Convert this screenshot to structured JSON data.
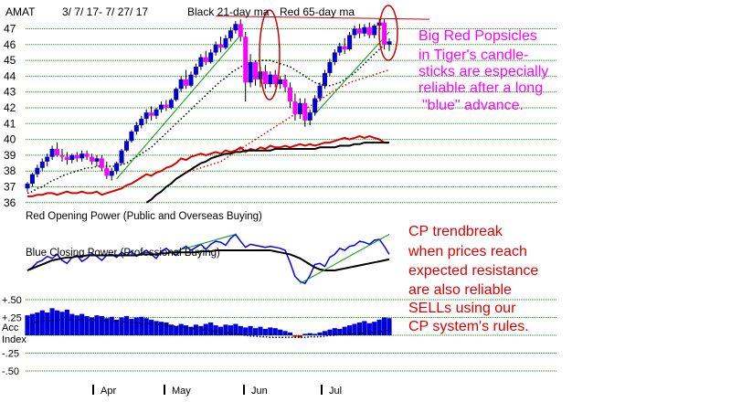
{
  "header": {
    "ticker": "AMAT",
    "date_range": "3/ 7/ 17- 7/ 27/ 17",
    "ma_label_black": "Black 21-day ma",
    "ma_label_red": "Red 65-day ma"
  },
  "annotations": {
    "popsicles": [
      "Big Red Popsicles",
      "in Tiger's candle-",
      "sticks are especially",
      "reliable after a long",
      "\"blue\" advance."
    ],
    "cp_trendbreak": [
      "CP trendbreak",
      "when prices reach",
      "expected resistance",
      "are also reliable",
      "SELLs using our",
      "CP system's rules."
    ]
  },
  "panel_labels": {
    "opening_power": "Red Opening Power (Public and Overseas Buying)",
    "closing_power": "Blue Closing Power (Professional Buying)",
    "acc_index": [
      "Acc",
      "Index"
    ]
  },
  "colors": {
    "up_candle": "#0000cc",
    "down_candle": "#ff00ff",
    "opening_power": "#dd0000",
    "closing_power": "#0000ff",
    "grid": "#009900",
    "trendline": "#009900",
    "acc_bars": "#0000dd",
    "ellipse": "#cc0000",
    "annotation_magenta": "#ff00ff",
    "annotation_red": "#dd0000"
  },
  "chart_data": [
    {
      "type": "candlestick",
      "title": "AMAT",
      "y_ticks": [
        36,
        37,
        38,
        39,
        40,
        41,
        42,
        43,
        44,
        45,
        46,
        47
      ],
      "ylim": [
        35.5,
        47.8
      ],
      "x_month_labels": [
        "Apr",
        "May",
        "Jun",
        "Jul"
      ],
      "grid": true,
      "candles": [
        [
          36.9,
          37.3,
          36.7,
          37.2
        ],
        [
          37.2,
          37.9,
          37.0,
          37.8
        ],
        [
          37.8,
          38.4,
          37.6,
          38.2
        ],
        [
          38.2,
          38.8,
          38.0,
          38.6
        ],
        [
          38.6,
          39.1,
          38.3,
          38.9
        ],
        [
          38.9,
          39.6,
          38.7,
          39.4
        ],
        [
          39.4,
          39.8,
          38.9,
          39.0
        ],
        [
          39.0,
          39.4,
          38.6,
          38.9
        ],
        [
          38.9,
          39.2,
          38.4,
          38.7
        ],
        [
          38.7,
          39.1,
          38.5,
          39.0
        ],
        [
          39.0,
          39.2,
          38.6,
          38.8
        ],
        [
          38.8,
          39.3,
          38.6,
          39.1
        ],
        [
          39.1,
          39.3,
          38.7,
          38.9
        ],
        [
          38.9,
          39.1,
          38.4,
          38.6
        ],
        [
          38.6,
          39.0,
          38.3,
          38.8
        ],
        [
          38.8,
          39.0,
          38.0,
          38.2
        ],
        [
          38.2,
          38.6,
          37.5,
          37.7
        ],
        [
          37.7,
          38.2,
          37.4,
          38.0
        ],
        [
          38.0,
          38.6,
          37.8,
          38.5
        ],
        [
          38.5,
          39.4,
          38.4,
          39.3
        ],
        [
          39.3,
          40.0,
          39.2,
          39.9
        ],
        [
          39.9,
          40.6,
          39.8,
          40.5
        ],
        [
          40.5,
          41.1,
          40.3,
          40.9
        ],
        [
          40.9,
          41.5,
          40.7,
          41.3
        ],
        [
          41.3,
          41.9,
          41.0,
          41.7
        ],
        [
          41.7,
          42.1,
          41.2,
          41.5
        ],
        [
          41.5,
          42.0,
          41.3,
          41.9
        ],
        [
          41.9,
          42.4,
          41.7,
          42.2
        ],
        [
          42.2,
          42.5,
          41.8,
          42.0
        ],
        [
          42.0,
          42.6,
          41.9,
          42.5
        ],
        [
          42.5,
          43.3,
          42.4,
          43.2
        ],
        [
          43.2,
          44.0,
          43.0,
          43.8
        ],
        [
          43.8,
          44.4,
          43.2,
          43.4
        ],
        [
          43.4,
          44.3,
          43.3,
          44.1
        ],
        [
          44.1,
          44.8,
          43.9,
          44.6
        ],
        [
          44.6,
          45.4,
          44.4,
          45.2
        ],
        [
          45.2,
          45.6,
          44.7,
          44.9
        ],
        [
          44.9,
          45.7,
          44.8,
          45.5
        ],
        [
          45.5,
          46.2,
          45.3,
          46.0
        ],
        [
          46.0,
          46.5,
          45.5,
          45.8
        ],
        [
          45.8,
          46.6,
          45.7,
          46.4
        ],
        [
          46.4,
          47.1,
          46.2,
          46.9
        ],
        [
          46.9,
          47.5,
          46.7,
          47.3
        ],
        [
          47.3,
          47.6,
          46.2,
          46.5
        ],
        [
          46.5,
          46.8,
          42.4,
          43.6
        ],
        [
          43.6,
          45.4,
          43.3,
          44.9
        ],
        [
          44.9,
          45.0,
          43.4,
          43.8
        ],
        [
          43.8,
          44.6,
          43.3,
          44.3
        ],
        [
          44.3,
          44.7,
          43.2,
          43.5
        ],
        [
          43.5,
          44.3,
          43.3,
          44.1
        ],
        [
          44.1,
          44.4,
          43.3,
          43.5
        ],
        [
          43.5,
          44.0,
          43.2,
          43.8
        ],
        [
          43.8,
          44.1,
          43.0,
          43.3
        ],
        [
          43.3,
          43.6,
          42.0,
          42.4
        ],
        [
          42.4,
          42.9,
          41.2,
          41.6
        ],
        [
          41.6,
          42.6,
          41.3,
          42.3
        ],
        [
          42.3,
          42.6,
          40.8,
          41.2
        ],
        [
          41.2,
          41.9,
          40.9,
          41.7
        ],
        [
          41.7,
          42.8,
          41.5,
          42.6
        ],
        [
          42.6,
          43.6,
          42.4,
          43.4
        ],
        [
          43.4,
          44.4,
          43.2,
          44.2
        ],
        [
          44.2,
          45.1,
          44.0,
          44.9
        ],
        [
          44.9,
          45.7,
          44.7,
          45.5
        ],
        [
          45.5,
          46.1,
          45.3,
          45.9
        ],
        [
          45.9,
          46.4,
          45.4,
          45.7
        ],
        [
          45.7,
          46.8,
          45.6,
          46.6
        ],
        [
          46.6,
          47.2,
          46.4,
          47.0
        ],
        [
          47.0,
          47.3,
          46.4,
          46.7
        ],
        [
          46.7,
          47.3,
          46.5,
          47.1
        ],
        [
          47.1,
          47.4,
          46.4,
          46.6
        ],
        [
          46.6,
          47.3,
          46.4,
          47.2
        ],
        [
          47.2,
          47.6,
          47.0,
          47.4
        ],
        [
          47.4,
          47.6,
          45.7,
          46.0
        ],
        [
          46.0,
          46.4,
          45.6,
          46.2
        ]
      ],
      "ma21": [
        36.6,
        36.7,
        36.9,
        37.0,
        37.2,
        37.4,
        37.5,
        37.7,
        37.8,
        37.9,
        38.0,
        38.1,
        38.2,
        38.2,
        38.3,
        38.3,
        38.3,
        38.3,
        38.3,
        38.4,
        38.5,
        38.7,
        38.9,
        39.1,
        39.3,
        39.5,
        39.8,
        40.1,
        40.4,
        40.7,
        41.0,
        41.3,
        41.6,
        41.9,
        42.2,
        42.5,
        42.8,
        43.1,
        43.4,
        43.7,
        43.9,
        44.2,
        44.4,
        44.6,
        44.7,
        44.8,
        44.9,
        45.0,
        45.0,
        45.0,
        44.9,
        44.8,
        44.7,
        44.6,
        44.4,
        44.2,
        44.0,
        43.8,
        43.6,
        43.5,
        43.4,
        43.4,
        43.5,
        43.6,
        43.8,
        44.0,
        44.2,
        44.5,
        44.8,
        45.1,
        45.4,
        45.7,
        46.0,
        46.2
      ],
      "ma65": [
        null,
        null,
        null,
        null,
        null,
        null,
        null,
        null,
        null,
        null,
        null,
        null,
        null,
        null,
        null,
        null,
        null,
        null,
        null,
        null,
        null,
        null,
        null,
        null,
        null,
        null,
        null,
        null,
        null,
        null,
        null,
        null,
        37.9,
        38.0,
        38.1,
        38.2,
        38.3,
        38.4,
        38.5,
        38.6,
        38.8,
        39.0,
        39.2,
        39.4,
        39.6,
        39.8,
        40.0,
        40.2,
        40.4,
        40.6,
        40.8,
        41.0,
        41.2,
        41.4,
        41.6,
        41.8,
        41.9,
        42.1,
        42.3,
        42.5,
        42.7,
        42.9,
        43.1,
        43.3,
        43.4,
        43.6,
        43.7,
        43.8,
        43.9,
        44.0,
        44.1,
        44.2,
        44.3,
        44.4
      ],
      "trendlines": [
        {
          "from": [
            18,
            37.5
          ],
          "to": [
            43,
            46.6
          ]
        },
        {
          "from": [
            58,
            41.6
          ],
          "to": [
            73,
            46.8
          ]
        }
      ],
      "resistance_line": {
        "from": [
          38,
          47.8
        ],
        "to": [
          73,
          47.6
        ]
      },
      "opening_power": [
        36.4,
        36.4,
        36.5,
        36.5,
        36.6,
        36.6,
        36.5,
        36.6,
        36.7,
        36.6,
        36.6,
        36.7,
        36.6,
        36.6,
        36.7,
        36.5,
        36.6,
        36.7,
        36.8,
        36.9,
        37.1,
        37.2,
        37.4,
        37.6,
        37.8,
        37.7,
        37.9,
        38.0,
        38.2,
        38.3,
        38.5,
        38.8,
        38.7,
        38.9,
        39.0,
        39.1,
        39.0,
        39.1,
        39.2,
        39.1,
        39.3,
        39.2,
        39.3,
        39.5,
        39.2,
        39.4,
        39.3,
        39.5,
        39.4,
        39.6,
        39.5,
        39.5,
        39.6,
        39.5,
        39.6,
        39.7,
        39.6,
        39.7,
        39.6,
        39.7,
        39.8,
        39.8,
        39.9,
        40.0,
        40.1,
        40.0,
        40.1,
        40.2,
        40.1,
        40.2,
        40.1,
        40.0,
        39.8,
        39.8
      ],
      "closing_power_overlay": [
        null,
        null,
        null,
        null,
        null,
        null,
        null,
        null,
        null,
        null,
        null,
        null,
        null,
        null,
        null,
        null,
        null,
        null,
        null,
        null,
        null,
        null,
        null,
        null,
        36.0,
        36.2,
        36.5,
        36.7,
        37.0,
        37.2,
        37.5,
        37.7,
        37.9,
        38.1,
        38.3,
        38.5,
        38.6,
        38.8,
        38.9,
        39.0,
        39.1,
        39.1,
        39.2,
        39.2,
        39.3,
        39.3,
        39.3,
        39.3,
        39.3,
        39.3,
        39.4,
        39.4,
        39.4,
        39.4,
        39.4,
        39.4,
        39.4,
        39.4,
        39.4,
        39.5,
        39.5,
        39.5,
        39.5,
        39.6,
        39.6,
        39.6,
        39.7,
        39.7,
        39.8,
        39.8,
        39.8,
        39.8,
        39.8,
        39.8
      ]
    },
    {
      "type": "line",
      "title": "Blue Closing Power (Professional Buying)",
      "grid": true,
      "series": [
        {
          "name": "Blue Closing Power (Professional Buying)",
          "values": [
            2.0,
            2.3,
            2.8,
            3.0,
            3.4,
            3.2,
            3.6,
            3.0,
            2.7,
            3.3,
            3.5,
            2.9,
            3.2,
            3.7,
            3.4,
            3.0,
            3.5,
            3.6,
            3.3,
            3.8,
            3.5,
            3.9,
            3.4,
            3.7,
            4.0,
            3.6,
            3.2,
            3.9,
            4.2,
            3.8,
            3.5,
            4.1,
            4.4,
            4.0,
            4.3,
            4.6,
            4.1,
            4.6,
            4.9,
            4.8,
            4.5,
            5.2,
            5.6,
            4.9,
            4.3,
            4.6,
            4.5,
            4.4,
            4.3,
            4.4,
            4.3,
            4.2,
            4.0,
            2.8,
            1.4,
            0.9,
            0.7,
            1.5,
            2.6,
            2.7,
            2.4,
            3.3,
            3.6,
            4.2,
            4.0,
            4.4,
            4.5,
            4.9,
            4.8,
            4.6,
            5.0,
            5.1,
            4.4,
            3.6
          ]
        },
        {
          "name": "",
          "values": [
            2.0,
            2.2,
            2.4,
            2.6,
            2.8,
            3.0,
            3.1,
            3.2,
            3.3,
            3.3,
            3.4,
            3.4,
            3.5,
            3.5,
            3.5,
            3.5,
            3.5,
            3.5,
            3.5,
            3.5,
            3.5,
            3.5,
            3.5,
            3.6,
            3.6,
            3.6,
            3.6,
            3.7,
            3.7,
            3.8,
            3.8,
            3.8,
            3.8,
            3.8,
            3.8,
            3.9,
            3.9,
            3.9,
            4.0,
            4.0,
            4.0,
            4.0,
            4.0,
            4.0,
            4.0,
            4.0,
            4.0,
            4.0,
            4.0,
            4.0,
            3.9,
            3.8,
            3.7,
            3.6,
            3.4,
            3.2,
            2.9,
            2.6,
            2.3,
            2.1,
            2.0,
            2.0,
            2.0,
            2.1,
            2.2,
            2.3,
            2.4,
            2.5,
            2.6,
            2.7,
            2.8,
            2.9,
            3.0,
            3.1
          ]
        }
      ],
      "trendlines": [
        {
          "from": [
            29,
            3.8
          ],
          "to": [
            42,
            5.6
          ]
        },
        {
          "from": [
            55,
            0.7
          ],
          "to": [
            73,
            5.6
          ]
        }
      ]
    },
    {
      "type": "bar",
      "title": "Acc Index",
      "y_ticks": [
        "+.50",
        "+.25",
        "-.25",
        "-.50"
      ],
      "ylim": [
        -0.6,
        0.65
      ],
      "values": [
        0.28,
        0.3,
        0.32,
        0.35,
        0.32,
        0.38,
        0.35,
        0.33,
        0.36,
        0.3,
        0.28,
        0.3,
        0.27,
        0.25,
        0.28,
        0.27,
        0.24,
        0.26,
        0.22,
        0.25,
        0.27,
        0.23,
        0.25,
        0.26,
        0.24,
        0.22,
        0.2,
        0.19,
        0.18,
        0.15,
        0.13,
        0.16,
        0.14,
        0.12,
        0.15,
        0.13,
        0.16,
        0.18,
        0.14,
        0.12,
        0.15,
        0.14,
        0.16,
        0.13,
        0.11,
        0.13,
        0.1,
        0.12,
        0.09,
        0.11,
        0.1,
        0.08,
        0.06,
        0.04,
        -0.02,
        -0.03,
        0.02,
        0.03,
        0.02,
        0.04,
        0.06,
        0.08,
        0.1,
        0.09,
        0.12,
        0.14,
        0.16,
        0.18,
        0.2,
        0.17,
        0.19,
        0.22,
        0.25,
        0.24
      ],
      "ma": [
        0.18,
        0.18,
        0.19,
        0.2,
        0.2,
        0.21,
        0.21,
        0.22,
        0.22,
        0.22,
        0.22,
        0.22,
        0.22,
        0.21,
        0.21,
        0.21,
        0.2,
        0.2,
        0.2,
        0.19,
        0.19,
        0.18,
        0.18,
        0.17,
        0.17,
        0.16,
        0.15,
        0.15,
        0.14,
        0.13,
        0.13,
        0.12,
        0.11,
        0.1,
        0.09,
        0.08,
        0.07,
        0.06,
        0.05,
        0.05,
        0.04,
        0.03,
        0.02,
        0.01,
        0.0,
        -0.01,
        -0.01,
        -0.02,
        -0.02,
        -0.03,
        -0.03,
        -0.03,
        -0.03,
        -0.03,
        -0.03,
        -0.03,
        -0.03,
        -0.02,
        -0.02,
        -0.02,
        -0.01,
        0.0,
        0.0,
        0.01,
        0.01,
        0.02,
        0.02,
        0.03,
        0.03,
        0.04,
        0.04,
        0.05,
        0.06,
        0.07
      ]
    }
  ]
}
